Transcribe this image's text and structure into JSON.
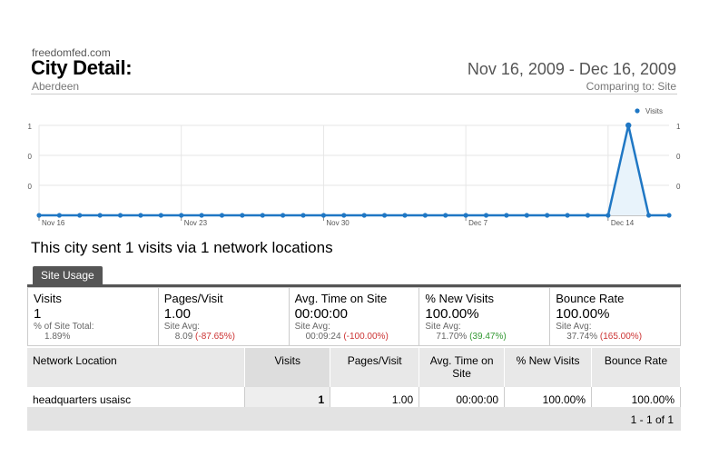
{
  "header": {
    "site": "freedomfed.com",
    "title": "City Detail:",
    "subtitle": "Aberdeen",
    "date_range": "Nov 16, 2009 - Dec 16, 2009",
    "comparing": "Comparing to: Site"
  },
  "chart_data": {
    "type": "line",
    "legend": "Visits",
    "legend_position": "top-right",
    "series": [
      {
        "name": "Visits",
        "color": "#1f77c4",
        "values": [
          0,
          0,
          0,
          0,
          0,
          0,
          0,
          0,
          0,
          0,
          0,
          0,
          0,
          0,
          0,
          0,
          0,
          0,
          0,
          0,
          0,
          0,
          0,
          0,
          0,
          0,
          0,
          0,
          0,
          1,
          0,
          0
        ]
      }
    ],
    "x_labels": [
      "Nov 16",
      "Nov 23",
      "Nov 30",
      "Dec 7",
      "Dec 14"
    ],
    "x_label_indices": [
      0,
      7,
      14,
      21,
      28
    ],
    "y_ticks_left": [
      "1",
      "0",
      "0"
    ],
    "y_ticks_right": [
      "1",
      "0",
      "0"
    ],
    "ylim": [
      0,
      1
    ]
  },
  "headline": "This city sent 1 visits via 1 network locations",
  "tab_label": "Site Usage",
  "metrics": [
    {
      "label": "Visits",
      "value": "1",
      "avg_label": "% of Site Total:",
      "avg_value": "1.89%",
      "delta": "",
      "delta_type": ""
    },
    {
      "label": "Pages/Visit",
      "value": "1.00",
      "avg_label": "Site Avg:",
      "avg_value": "8.09",
      "delta": "(-87.65%)",
      "delta_type": "neg"
    },
    {
      "label": "Avg. Time on Site",
      "value": "00:00:00",
      "avg_label": "Site Avg:",
      "avg_value": "00:09:24",
      "delta": "(-100.00%)",
      "delta_type": "neg"
    },
    {
      "label": "% New Visits",
      "value": "100.00%",
      "avg_label": "Site Avg:",
      "avg_value": "71.70%",
      "delta": "(39.47%)",
      "delta_type": "pos"
    },
    {
      "label": "Bounce Rate",
      "value": "100.00%",
      "avg_label": "Site Avg:",
      "avg_value": "37.74%",
      "delta": "(165.00%)",
      "delta_type": "neg"
    }
  ],
  "table": {
    "columns": [
      "Network Location",
      "Visits",
      "Pages/Visit",
      "Avg. Time on Site",
      "% New Visits",
      "Bounce Rate"
    ],
    "rows": [
      [
        "headquarters usaisc",
        "1",
        "1.00",
        "00:00:00",
        "100.00%",
        "100.00%"
      ]
    ]
  },
  "pager": "1 - 1 of 1"
}
